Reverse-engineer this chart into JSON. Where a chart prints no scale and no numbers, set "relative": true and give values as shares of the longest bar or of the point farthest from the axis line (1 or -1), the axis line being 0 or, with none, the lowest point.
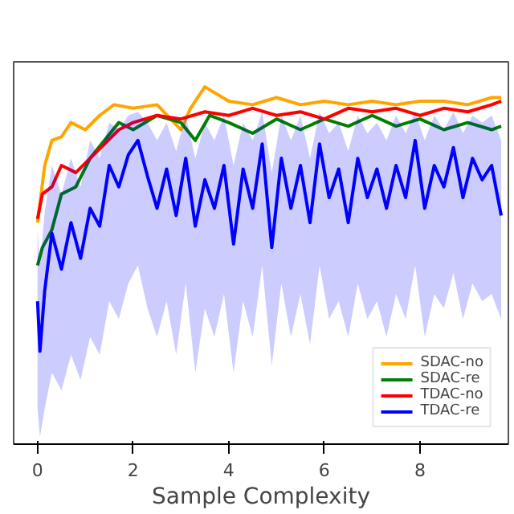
{
  "chart_data": {
    "type": "line",
    "relative": true,
    "xlabel": "Sample Complexity",
    "xlim": [
      -0.5,
      9.85
    ],
    "xticks": [
      0,
      2,
      4,
      6,
      8
    ],
    "legend": "bottom right",
    "grid": false,
    "series": [
      {
        "name": "SDAC-no",
        "color": "#ffa500",
        "x": [
          0,
          0.15,
          0.3,
          0.5,
          0.7,
          1.0,
          1.3,
          1.6,
          2.0,
          2.5,
          3.0,
          3.2,
          3.5,
          4.0,
          4.5,
          5.0,
          5.5,
          6.0,
          6.5,
          7.0,
          7.5,
          8.0,
          8.5,
          9.0,
          9.5,
          9.7
        ],
        "values": [
          0.62,
          0.78,
          0.85,
          0.86,
          0.9,
          0.88,
          0.92,
          0.95,
          0.94,
          0.95,
          0.88,
          0.94,
          1.0,
          0.96,
          0.95,
          0.97,
          0.95,
          0.96,
          0.95,
          0.96,
          0.95,
          0.96,
          0.96,
          0.95,
          0.97,
          0.97
        ]
      },
      {
        "name": "SDAC-re",
        "color": "#008000",
        "x": [
          0,
          0.1,
          0.3,
          0.5,
          0.8,
          1.1,
          1.4,
          1.7,
          2.0,
          2.5,
          3.0,
          3.3,
          3.6,
          4.0,
          4.5,
          5.0,
          5.5,
          6.0,
          6.5,
          7.0,
          7.5,
          8.0,
          8.5,
          9.0,
          9.5,
          9.7
        ],
        "values": [
          0.5,
          0.55,
          0.6,
          0.7,
          0.72,
          0.8,
          0.85,
          0.9,
          0.88,
          0.92,
          0.9,
          0.85,
          0.92,
          0.9,
          0.87,
          0.91,
          0.88,
          0.91,
          0.89,
          0.92,
          0.89,
          0.91,
          0.88,
          0.9,
          0.88,
          0.89
        ]
      },
      {
        "name": "TDAC-no",
        "color": "#ff0000",
        "x": [
          0,
          0.1,
          0.3,
          0.5,
          0.8,
          1.1,
          1.4,
          1.7,
          2.0,
          2.5,
          3.0,
          3.5,
          4.0,
          4.5,
          5.0,
          5.5,
          6.0,
          6.5,
          7.0,
          7.5,
          8.0,
          8.5,
          9.0,
          9.5,
          9.7
        ],
        "values": [
          0.63,
          0.7,
          0.72,
          0.78,
          0.76,
          0.8,
          0.84,
          0.88,
          0.9,
          0.92,
          0.91,
          0.93,
          0.92,
          0.94,
          0.92,
          0.93,
          0.91,
          0.94,
          0.93,
          0.94,
          0.92,
          0.94,
          0.93,
          0.95,
          0.96
        ]
      },
      {
        "name": "TDAC-re",
        "color": "#0000ff",
        "x": [
          0,
          0.05,
          0.15,
          0.3,
          0.5,
          0.7,
          0.9,
          1.1,
          1.3,
          1.5,
          1.7,
          1.9,
          2.1,
          2.3,
          2.5,
          2.7,
          2.9,
          3.1,
          3.3,
          3.5,
          3.7,
          3.9,
          4.1,
          4.3,
          4.5,
          4.7,
          4.9,
          5.1,
          5.3,
          5.5,
          5.7,
          5.9,
          6.1,
          6.3,
          6.5,
          6.7,
          6.9,
          7.1,
          7.3,
          7.5,
          7.7,
          7.9,
          8.1,
          8.3,
          8.5,
          8.7,
          8.9,
          9.1,
          9.3,
          9.5,
          9.7
        ],
        "values": [
          0.4,
          0.26,
          0.43,
          0.59,
          0.49,
          0.62,
          0.52,
          0.66,
          0.61,
          0.78,
          0.72,
          0.81,
          0.85,
          0.75,
          0.66,
          0.77,
          0.64,
          0.8,
          0.61,
          0.74,
          0.66,
          0.78,
          0.56,
          0.77,
          0.66,
          0.84,
          0.55,
          0.8,
          0.66,
          0.78,
          0.62,
          0.84,
          0.69,
          0.77,
          0.62,
          0.8,
          0.69,
          0.77,
          0.66,
          0.78,
          0.69,
          0.85,
          0.66,
          0.78,
          0.72,
          0.83,
          0.69,
          0.8,
          0.74,
          0.78,
          0.64
        ],
        "lower": [
          0.1,
          0.02,
          0.1,
          0.2,
          0.15,
          0.25,
          0.18,
          0.3,
          0.25,
          0.4,
          0.35,
          0.45,
          0.5,
          0.38,
          0.3,
          0.4,
          0.25,
          0.45,
          0.2,
          0.38,
          0.3,
          0.42,
          0.2,
          0.4,
          0.3,
          0.5,
          0.22,
          0.45,
          0.3,
          0.42,
          0.28,
          0.5,
          0.35,
          0.4,
          0.3,
          0.45,
          0.35,
          0.4,
          0.3,
          0.42,
          0.35,
          0.5,
          0.3,
          0.42,
          0.38,
          0.48,
          0.35,
          0.45,
          0.4,
          0.42,
          0.35
        ],
        "upper": [
          0.6,
          0.5,
          0.65,
          0.78,
          0.7,
          0.8,
          0.72,
          0.85,
          0.8,
          0.9,
          0.88,
          0.92,
          0.93,
          0.9,
          0.85,
          0.9,
          0.82,
          0.92,
          0.8,
          0.9,
          0.85,
          0.92,
          0.78,
          0.9,
          0.85,
          0.93,
          0.76,
          0.92,
          0.85,
          0.92,
          0.8,
          0.93,
          0.87,
          0.9,
          0.82,
          0.92,
          0.87,
          0.9,
          0.85,
          0.92,
          0.87,
          0.93,
          0.85,
          0.92,
          0.88,
          0.93,
          0.87,
          0.92,
          0.9,
          0.92,
          0.85
        ]
      }
    ]
  }
}
